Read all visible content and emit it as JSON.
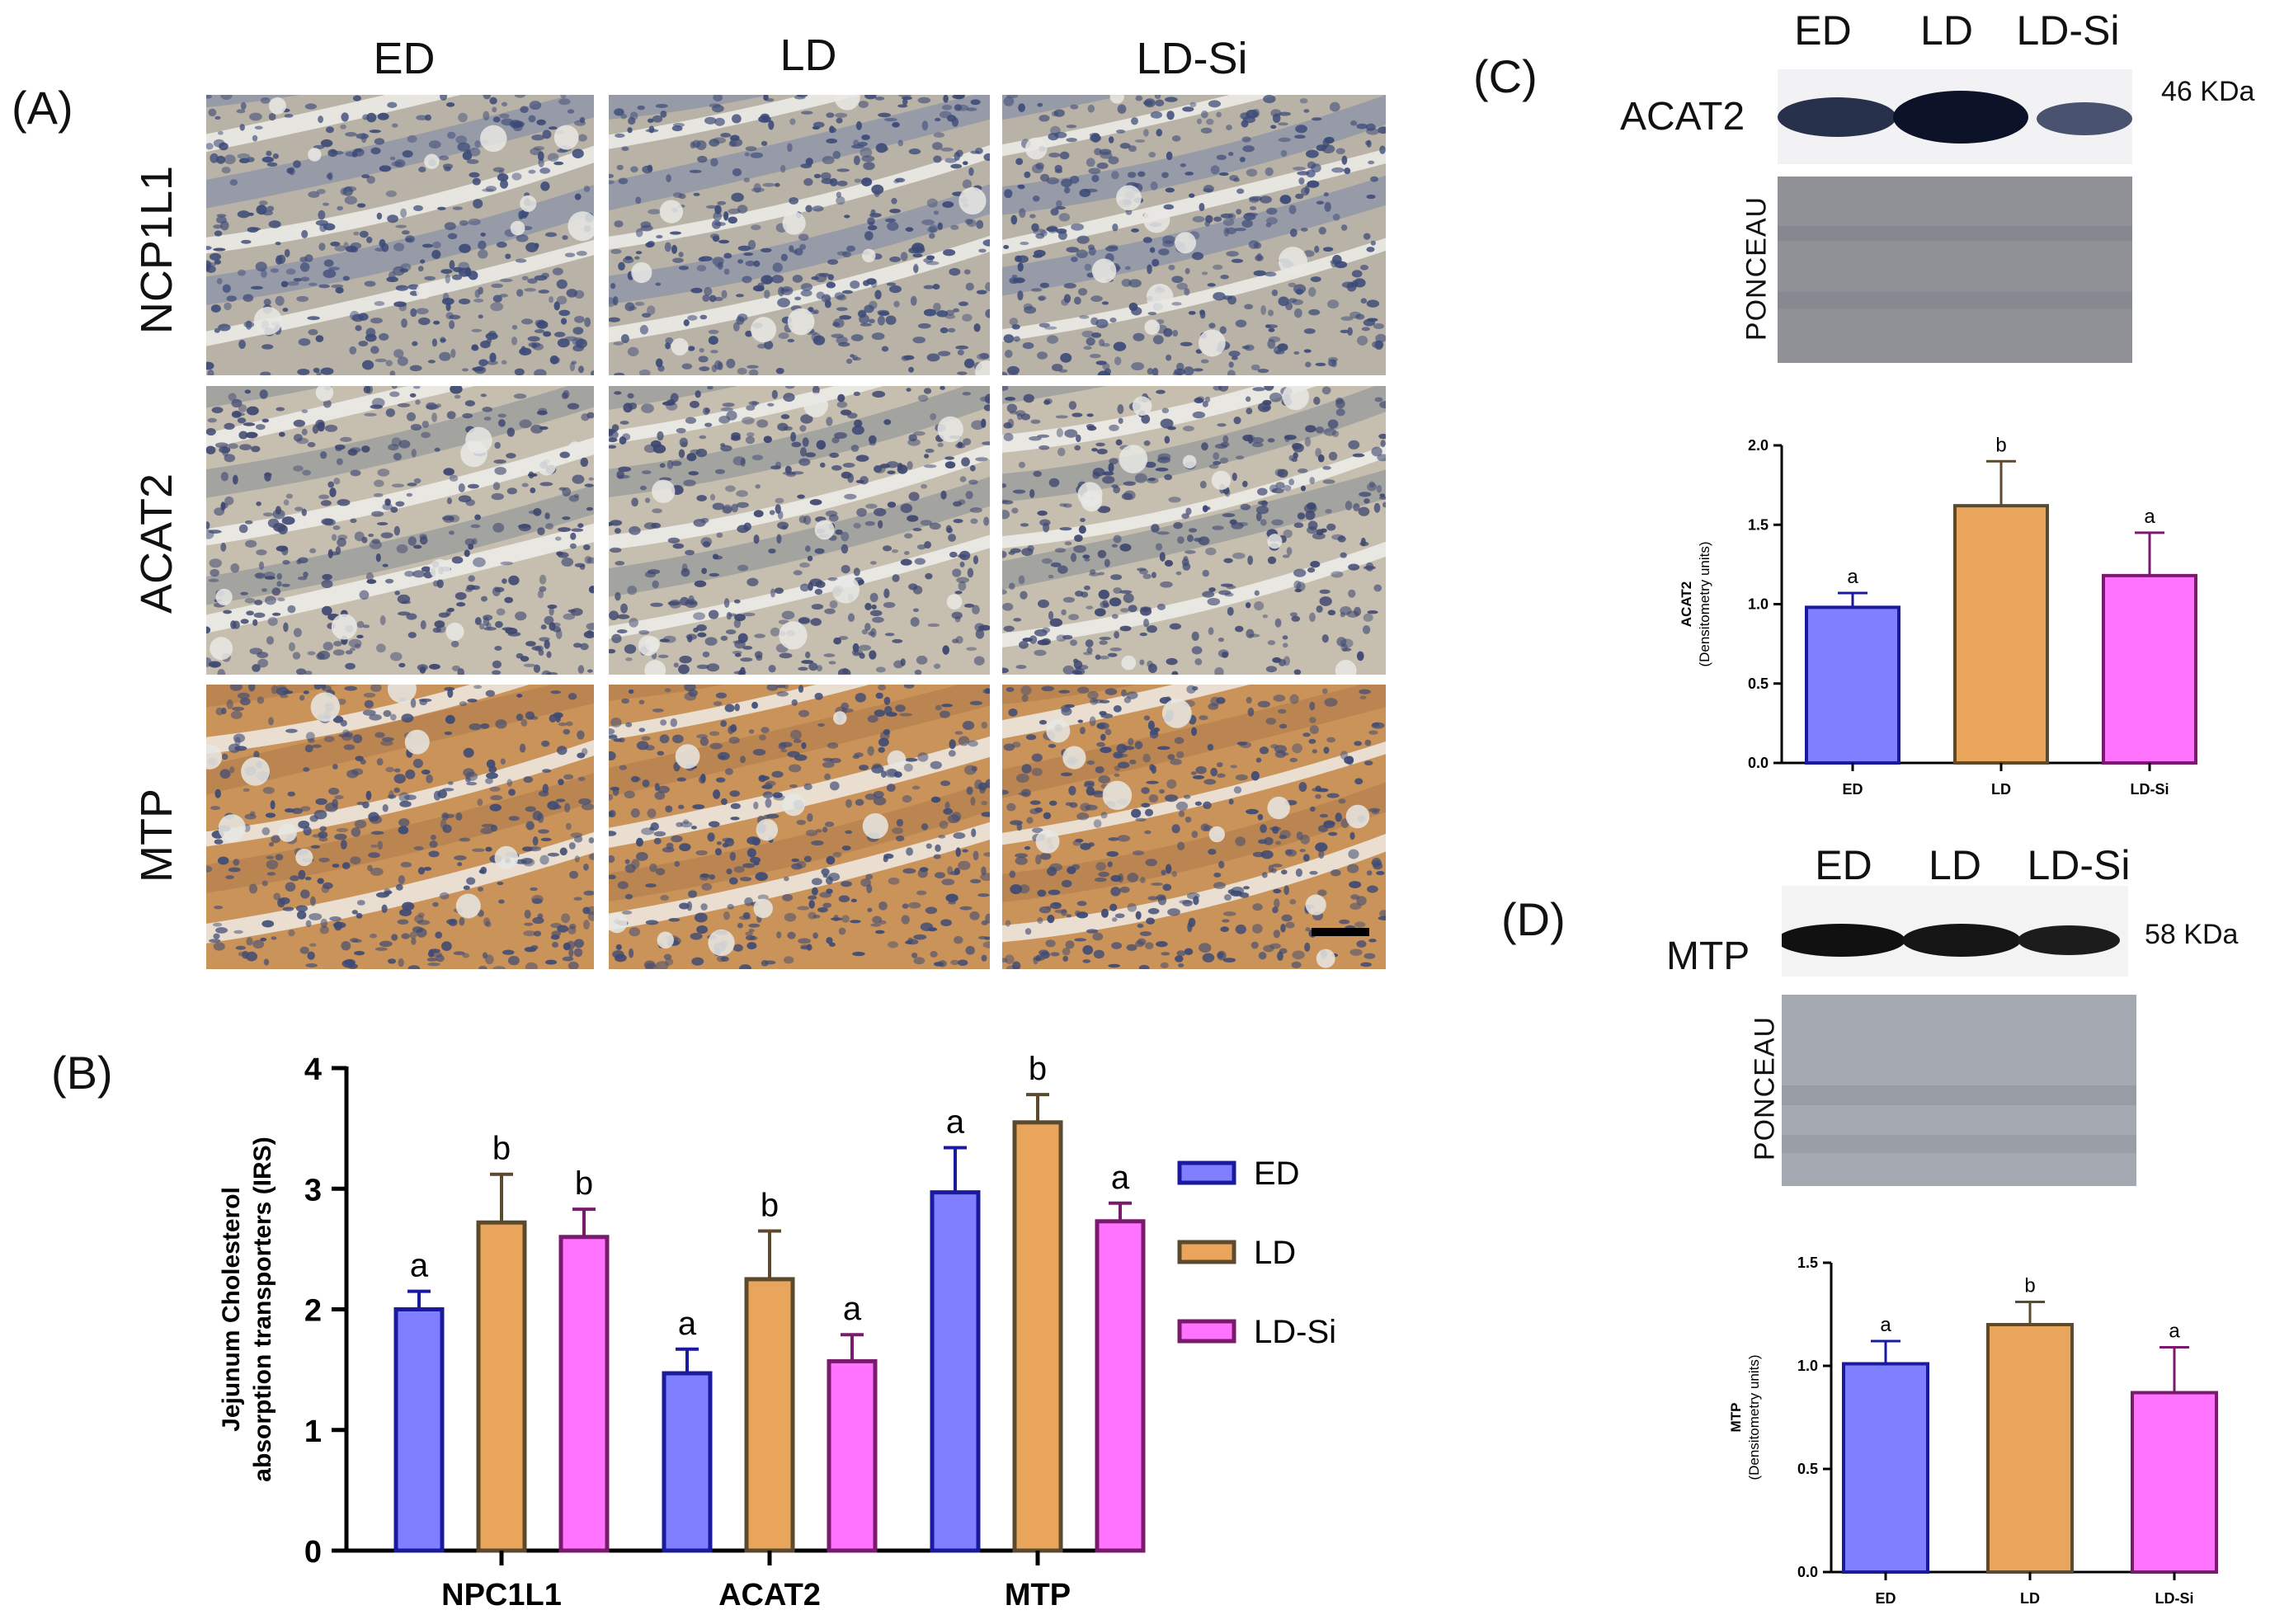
{
  "panels": {
    "A": "(A)",
    "B": "(B)",
    "C": "(C)",
    "D": "(D)"
  },
  "micrographs": {
    "columns": [
      "ED",
      "LD",
      "LD-Si"
    ],
    "rows": [
      "NCP1L1",
      "ACAT2",
      "MTP"
    ]
  },
  "blot_C": {
    "lanes": [
      "ED",
      "LD",
      "LD-Si"
    ],
    "protein": "ACAT2",
    "kda": "46 KDa",
    "loading": "PONCEAU"
  },
  "blot_D": {
    "lanes": [
      "ED",
      "LD",
      "LD-Si"
    ],
    "protein": "MTP",
    "kda": "58 KDa",
    "loading": "PONCEAU"
  },
  "colors": {
    "ED_fill": "#7f7fff",
    "ED_edge": "#1a1a9e",
    "LD_fill": "#e8a55b",
    "LD_edge": "#5c4a2e",
    "LDSi_fill": "#ff73ff",
    "LDSi_edge": "#7a1a6e"
  },
  "chart_data": [
    {
      "id": "B",
      "type": "bar",
      "categories": [
        "NPC1L1",
        "ACAT2",
        "MTP"
      ],
      "series": [
        {
          "name": "ED",
          "values": [
            2.0,
            1.47,
            2.97
          ],
          "errors": [
            0.15,
            0.2,
            0.37
          ],
          "letters": [
            "a",
            "a",
            "a"
          ]
        },
        {
          "name": "LD",
          "values": [
            2.72,
            2.25,
            3.55
          ],
          "errors": [
            0.4,
            0.4,
            0.23
          ],
          "letters": [
            "b",
            "b",
            "b"
          ]
        },
        {
          "name": "LD-Si",
          "values": [
            2.6,
            1.57,
            2.73
          ],
          "errors": [
            0.23,
            0.22,
            0.15
          ],
          "letters": [
            "b",
            "a",
            "a"
          ]
        }
      ],
      "ylabel_line1": "Jejunum Cholesterol",
      "ylabel_line2": "absorption transporters (IRS)",
      "yticks": [
        "0",
        "1",
        "2",
        "3",
        "4"
      ],
      "ylim": [
        0,
        4
      ],
      "legend": "right"
    },
    {
      "id": "C",
      "type": "bar",
      "categories": [
        "ED",
        "LD",
        "LD-Si"
      ],
      "values": [
        0.98,
        1.62,
        1.18
      ],
      "errors": [
        0.09,
        0.28,
        0.27
      ],
      "letters": [
        "a",
        "b",
        "a"
      ],
      "ylabel_line1": "ACAT2",
      "ylabel_line2": "(Densitometry units)",
      "yticks": [
        "0.0",
        "0.5",
        "1.0",
        "1.5",
        "2.0"
      ],
      "ylim": [
        0,
        2
      ]
    },
    {
      "id": "D",
      "type": "bar",
      "categories": [
        "ED",
        "LD",
        "LD-Si"
      ],
      "values": [
        1.01,
        1.2,
        0.87
      ],
      "errors": [
        0.11,
        0.11,
        0.22
      ],
      "letters": [
        "a",
        "b",
        "a"
      ],
      "ylabel_line1": "MTP",
      "ylabel_line2": "(Densitometry units)",
      "yticks": [
        "0.0",
        "0.5",
        "1.0",
        "1.5"
      ],
      "ylim": [
        0,
        1.5
      ]
    }
  ]
}
